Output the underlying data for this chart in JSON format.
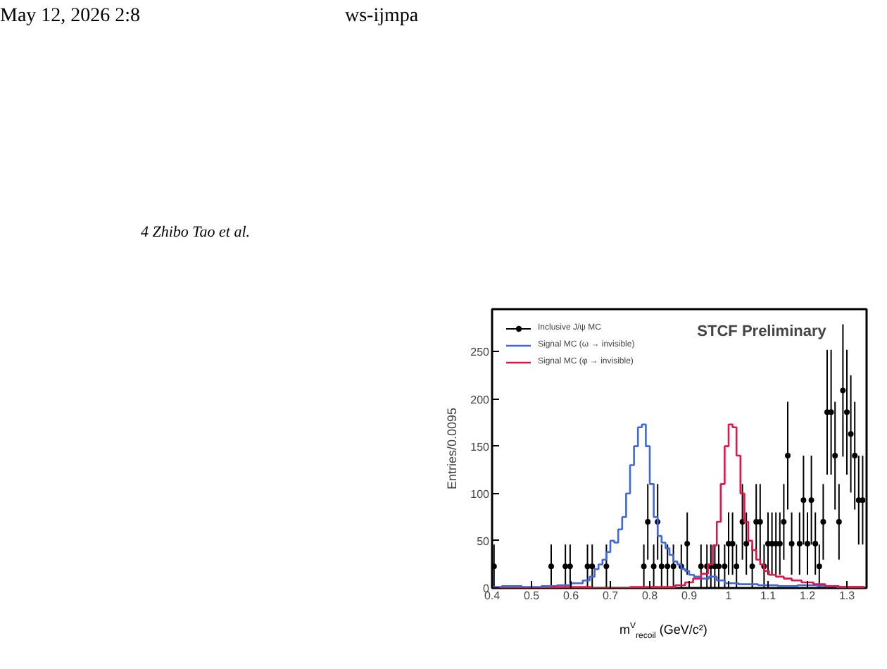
{
  "chart_data": {
    "type": "step",
    "xlabel": "m$^{V}$$_{recoil}$ (GeV/c²)",
    "ylabel": "Entries/0.0095",
    "annotations": [
      "STCF Preliminary",
      "May 12, 2026   2:8",
      "ws-ijmpa",
      "4   Zhibo Tao et al."
    ],
    "xlim": [
      0.4,
      1.35
    ],
    "xticks": [
      0.4,
      0.5,
      0.6,
      0.7,
      0.8,
      0.9,
      1,
      1.1,
      1.2,
      1.3
    ],
    "ylim": [
      0,
      295
    ],
    "yticks": [
      0,
      50,
      100,
      150,
      200,
      250
    ],
    "grid": false,
    "legend": "top left",
    "series": [
      {
        "name": "Inclusive J/ψ MC",
        "type": "scatter",
        "marker": "circle",
        "color": "#000000",
        "x": [
          0.405,
          0.55,
          0.586,
          0.598,
          0.642,
          0.654,
          0.69,
          0.785,
          0.795,
          0.81,
          0.82,
          0.83,
          0.845,
          0.86,
          0.88,
          0.895,
          0.93,
          0.945,
          0.955,
          0.965,
          0.975,
          0.99,
          1.0,
          1.01,
          1.02,
          1.035,
          1.045,
          1.06,
          1.07,
          1.08,
          1.09,
          1.1,
          1.11,
          1.12,
          1.13,
          1.14,
          1.15,
          1.16,
          1.18,
          1.19,
          1.2,
          1.21,
          1.22,
          1.23,
          1.24,
          1.25,
          1.26,
          1.27,
          1.28,
          1.29,
          1.3,
          1.31,
          1.32,
          1.33,
          1.34
        ],
        "values": [
          23,
          23,
          23,
          23,
          23,
          23,
          23,
          23,
          70,
          23,
          70,
          23,
          23,
          23,
          23,
          47,
          23,
          23,
          23,
          23,
          23,
          23,
          47,
          47,
          23,
          70,
          47,
          23,
          70,
          70,
          23,
          47,
          47,
          47,
          47,
          70,
          140,
          47,
          47,
          93,
          47,
          93,
          47,
          23,
          70,
          186,
          186,
          140,
          70,
          209,
          186,
          163,
          140,
          93,
          93
        ],
        "errors": [
          23,
          23,
          23,
          23,
          23,
          23,
          23,
          23,
          40,
          23,
          40,
          23,
          23,
          23,
          23,
          33,
          23,
          23,
          23,
          23,
          23,
          23,
          33,
          33,
          23,
          40,
          33,
          23,
          40,
          40,
          23,
          33,
          33,
          33,
          33,
          40,
          57,
          33,
          33,
          47,
          33,
          47,
          33,
          23,
          40,
          66,
          66,
          57,
          40,
          70,
          66,
          62,
          57,
          47,
          47
        ]
      },
      {
        "name": "Signal MC (ω → invisible)",
        "color": "#3f68d8",
        "x": [
          0.4,
          0.45,
          0.5,
          0.55,
          0.58,
          0.62,
          0.64,
          0.655,
          0.665,
          0.675,
          0.685,
          0.695,
          0.705,
          0.715,
          0.725,
          0.735,
          0.745,
          0.755,
          0.765,
          0.775,
          0.785,
          0.795,
          0.805,
          0.815,
          0.825,
          0.835,
          0.845,
          0.855,
          0.865,
          0.875,
          0.885,
          0.895,
          0.905,
          0.92,
          0.94,
          0.96,
          0.98,
          1.0,
          1.05,
          1.1,
          1.15,
          1.2,
          1.25,
          1.3,
          1.345
        ],
        "values": [
          1,
          2,
          1,
          2,
          3,
          5,
          8,
          12,
          20,
          25,
          30,
          38,
          50,
          48,
          62,
          75,
          100,
          130,
          150,
          170,
          173,
          150,
          110,
          75,
          55,
          48,
          42,
          35,
          28,
          25,
          20,
          18,
          14,
          12,
          10,
          12,
          8,
          5,
          4,
          3,
          2,
          3,
          2,
          1,
          1
        ]
      },
      {
        "name": "Signal MC (φ → invisible)",
        "color": "#e0164a",
        "x": [
          0.4,
          0.5,
          0.6,
          0.7,
          0.8,
          0.85,
          0.88,
          0.9,
          0.92,
          0.94,
          0.955,
          0.965,
          0.975,
          0.985,
          0.995,
          1.005,
          1.015,
          1.025,
          1.035,
          1.045,
          1.055,
          1.065,
          1.075,
          1.085,
          1.095,
          1.11,
          1.13,
          1.15,
          1.17,
          1.2,
          1.23,
          1.26,
          1.3,
          1.345
        ],
        "values": [
          0,
          0,
          1,
          0,
          1,
          1,
          3,
          6,
          10,
          15,
          25,
          45,
          70,
          110,
          150,
          173,
          170,
          140,
          100,
          70,
          50,
          40,
          30,
          25,
          18,
          14,
          12,
          10,
          8,
          6,
          4,
          2,
          1,
          1
        ]
      }
    ]
  }
}
